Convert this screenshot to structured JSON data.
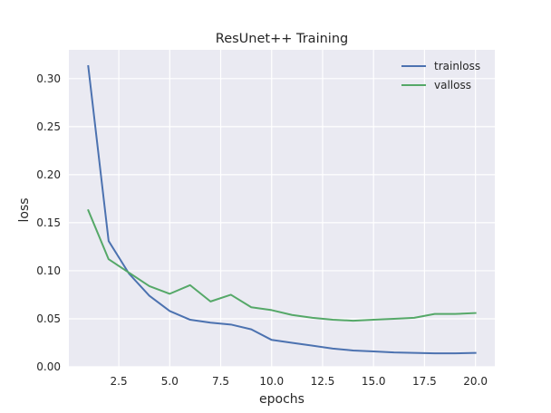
{
  "chart_data": {
    "type": "line",
    "title": "ResUnet++ Training",
    "xlabel": "epochs",
    "ylabel": "loss",
    "xlim": [
      0.05,
      20.95
    ],
    "ylim": [
      0,
      0.33
    ],
    "x_ticks": [
      2.5,
      5.0,
      7.5,
      10.0,
      12.5,
      15.0,
      17.5,
      20.0
    ],
    "x_tick_labels": [
      "2.5",
      "5.0",
      "7.5",
      "10.0",
      "12.5",
      "15.0",
      "17.5",
      "20.0"
    ],
    "y_ticks": [
      0.0,
      0.05,
      0.1,
      0.15,
      0.2,
      0.25,
      0.3
    ],
    "y_tick_labels": [
      "0.00",
      "0.05",
      "0.10",
      "0.15",
      "0.20",
      "0.25",
      "0.30"
    ],
    "grid": true,
    "legend_position": "top-right",
    "x": [
      1,
      2,
      3,
      4,
      5,
      6,
      7,
      8,
      9,
      10,
      11,
      12,
      13,
      14,
      15,
      16,
      17,
      18,
      19,
      20
    ],
    "series": [
      {
        "name": "trainloss",
        "color": "#4c72b0",
        "values": [
          0.313,
          0.131,
          0.097,
          0.074,
          0.058,
          0.049,
          0.046,
          0.044,
          0.039,
          0.028,
          0.025,
          0.022,
          0.019,
          0.017,
          0.016,
          0.015,
          0.0145,
          0.014,
          0.014,
          0.0145
        ]
      },
      {
        "name": "valloss",
        "color": "#55a868",
        "values": [
          0.163,
          0.112,
          0.098,
          0.084,
          0.076,
          0.085,
          0.068,
          0.075,
          0.062,
          0.059,
          0.054,
          0.051,
          0.049,
          0.048,
          0.049,
          0.05,
          0.051,
          0.055,
          0.055,
          0.056
        ]
      }
    ],
    "colors": {
      "plot_background": "#eaeaf2",
      "grid": "#ffffff",
      "text": "#262626"
    }
  }
}
